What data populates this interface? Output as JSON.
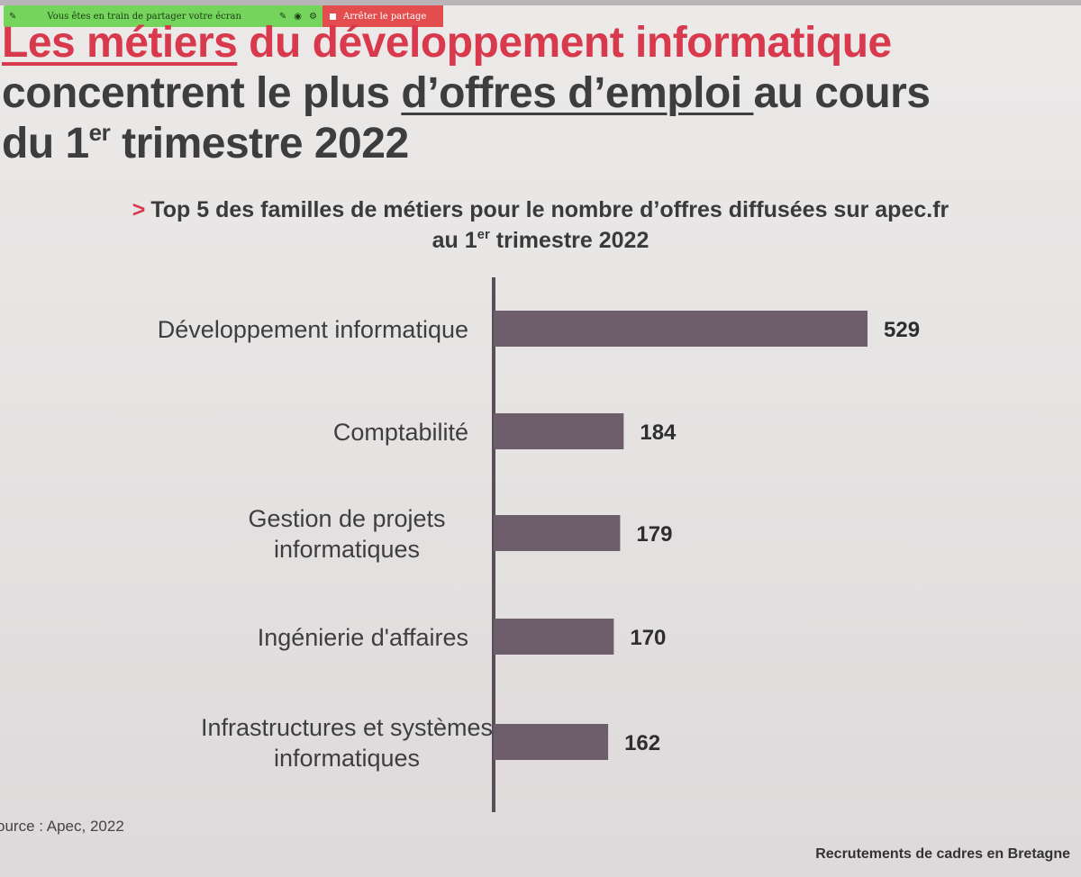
{
  "screen_share": {
    "message": "Vous êtes en train de partager votre écran",
    "stop_label": "Arrêter le partage"
  },
  "headline": {
    "part1": "Les métiers",
    "part2": " du développement informatique",
    "part3": "concentrent le plus ",
    "part4": "d’offres d’emploi ",
    "part5": "au cours",
    "part6": "du 1",
    "part6_sup": "er",
    "part7": " trimestre 2022"
  },
  "chart_title": {
    "marker": ">",
    "line1": "Top 5 des familles de métiers pour le nombre d’offres diffusées sur apec.fr",
    "line2a": "au 1",
    "line2_sup": "er",
    "line2b": " trimestre 2022"
  },
  "chart_data": {
    "type": "bar",
    "orientation": "horizontal",
    "categories": [
      [
        "Développement informatique"
      ],
      [
        "Comptabilité"
      ],
      [
        "Gestion de projets",
        "informatiques"
      ],
      [
        "Ingénierie d'affaires"
      ],
      [
        "Infrastructures et systèmes",
        "informatiques"
      ]
    ],
    "values": [
      529,
      184,
      179,
      170,
      162
    ],
    "bar_color": "#6e5d6a",
    "grid": false
  },
  "source": "ource : Apec, 2022",
  "footer": "Recrutements de cadres en Bretagne"
}
